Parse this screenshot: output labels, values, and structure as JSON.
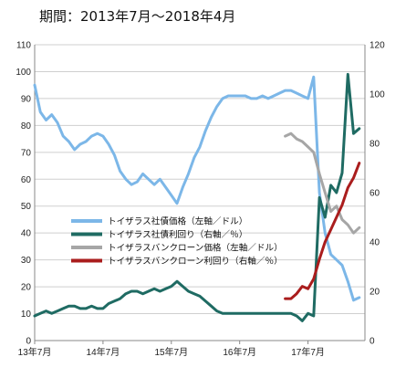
{
  "chart_data": {
    "type": "line",
    "title": "期間：2013年7月～2018年4月",
    "grid": true,
    "legend_position": "center-left",
    "x_range": [
      "2013-07",
      "2018-05"
    ],
    "x_ticks": [
      "13年7月",
      "14年7月",
      "15年7月",
      "16年7月",
      "17年7月"
    ],
    "y_left": {
      "min": 0,
      "max": 110,
      "step": 10,
      "ticks": [
        "0",
        "10",
        "20",
        "30",
        "40",
        "50",
        "60",
        "70",
        "80",
        "90",
        "100",
        "110"
      ]
    },
    "y_right": {
      "min": 0,
      "max": 120,
      "step": 20,
      "ticks": [
        "0",
        "20",
        "40",
        "60",
        "80",
        "100",
        "120"
      ]
    },
    "series": [
      {
        "name": "トイザラス社債価格（左軸／ドル）",
        "axis": "left",
        "color": "#7cb7e8",
        "points": [
          [
            "2013-07",
            95
          ],
          [
            "2013-08",
            85
          ],
          [
            "2013-09",
            82
          ],
          [
            "2013-10",
            84
          ],
          [
            "2013-11",
            81
          ],
          [
            "2013-12",
            76
          ],
          [
            "2014-01",
            74
          ],
          [
            "2014-02",
            71
          ],
          [
            "2014-03",
            73
          ],
          [
            "2014-04",
            74
          ],
          [
            "2014-05",
            76
          ],
          [
            "2014-06",
            77
          ],
          [
            "2014-07",
            76
          ],
          [
            "2014-08",
            73
          ],
          [
            "2014-09",
            69
          ],
          [
            "2014-10",
            63
          ],
          [
            "2014-11",
            60
          ],
          [
            "2014-12",
            58
          ],
          [
            "2015-01",
            59
          ],
          [
            "2015-02",
            62
          ],
          [
            "2015-03",
            60
          ],
          [
            "2015-04",
            58
          ],
          [
            "2015-05",
            60
          ],
          [
            "2015-06",
            57
          ],
          [
            "2015-07",
            54
          ],
          [
            "2015-08",
            51
          ],
          [
            "2015-09",
            57
          ],
          [
            "2015-10",
            62
          ],
          [
            "2015-11",
            68
          ],
          [
            "2015-12",
            72
          ],
          [
            "2016-01",
            78
          ],
          [
            "2016-02",
            83
          ],
          [
            "2016-03",
            87
          ],
          [
            "2016-04",
            90
          ],
          [
            "2016-05",
            91
          ],
          [
            "2016-06",
            91
          ],
          [
            "2016-07",
            91
          ],
          [
            "2016-08",
            91
          ],
          [
            "2016-09",
            90
          ],
          [
            "2016-10",
            90
          ],
          [
            "2016-11",
            91
          ],
          [
            "2016-12",
            90
          ],
          [
            "2017-01",
            91
          ],
          [
            "2017-02",
            92
          ],
          [
            "2017-03",
            93
          ],
          [
            "2017-04",
            93
          ],
          [
            "2017-05",
            92
          ],
          [
            "2017-06",
            91
          ],
          [
            "2017-07",
            90
          ],
          [
            "2017-08",
            98
          ],
          [
            "2017-09",
            55
          ],
          [
            "2017-10",
            40
          ],
          [
            "2017-11",
            32
          ],
          [
            "2017-12",
            30
          ],
          [
            "2018-01",
            28
          ],
          [
            "2018-02",
            22
          ],
          [
            "2018-03",
            15
          ],
          [
            "2018-04",
            16
          ]
        ]
      },
      {
        "name": "トイザラス社債利回り（右軸／％）",
        "axis": "right",
        "color": "#1f6b63",
        "points": [
          [
            "2013-07",
            10
          ],
          [
            "2013-08",
            11
          ],
          [
            "2013-09",
            12
          ],
          [
            "2013-10",
            11
          ],
          [
            "2013-11",
            12
          ],
          [
            "2013-12",
            13
          ],
          [
            "2014-01",
            14
          ],
          [
            "2014-02",
            14
          ],
          [
            "2014-03",
            13
          ],
          [
            "2014-04",
            13
          ],
          [
            "2014-05",
            14
          ],
          [
            "2014-06",
            13
          ],
          [
            "2014-07",
            13
          ],
          [
            "2014-08",
            15
          ],
          [
            "2014-09",
            16
          ],
          [
            "2014-10",
            17
          ],
          [
            "2014-11",
            19
          ],
          [
            "2014-12",
            20
          ],
          [
            "2015-01",
            20
          ],
          [
            "2015-02",
            19
          ],
          [
            "2015-03",
            20
          ],
          [
            "2015-04",
            21
          ],
          [
            "2015-05",
            20
          ],
          [
            "2015-06",
            21
          ],
          [
            "2015-07",
            22
          ],
          [
            "2015-08",
            24
          ],
          [
            "2015-09",
            22
          ],
          [
            "2015-10",
            20
          ],
          [
            "2015-11",
            19
          ],
          [
            "2015-12",
            18
          ],
          [
            "2016-01",
            16
          ],
          [
            "2016-02",
            14
          ],
          [
            "2016-03",
            12
          ],
          [
            "2016-04",
            11
          ],
          [
            "2016-05",
            11
          ],
          [
            "2016-06",
            11
          ],
          [
            "2016-07",
            11
          ],
          [
            "2016-08",
            11
          ],
          [
            "2016-09",
            11
          ],
          [
            "2016-10",
            11
          ],
          [
            "2016-11",
            11
          ],
          [
            "2016-12",
            11
          ],
          [
            "2017-01",
            11
          ],
          [
            "2017-02",
            11
          ],
          [
            "2017-03",
            11
          ],
          [
            "2017-04",
            11
          ],
          [
            "2017-05",
            10
          ],
          [
            "2017-06",
            8
          ],
          [
            "2017-07",
            11
          ],
          [
            "2017-08",
            10
          ],
          [
            "2017-09",
            58
          ],
          [
            "2017-10",
            50
          ],
          [
            "2017-11",
            63
          ],
          [
            "2017-12",
            60
          ],
          [
            "2018-01",
            68
          ],
          [
            "2018-02",
            108
          ],
          [
            "2018-03",
            84
          ],
          [
            "2018-04",
            86
          ]
        ]
      },
      {
        "name": "トイザラスバンクローン価格（左軸／ドル）",
        "axis": "left",
        "color": "#a6a6a6",
        "points": [
          [
            "2017-03",
            76
          ],
          [
            "2017-04",
            77
          ],
          [
            "2017-05",
            75
          ],
          [
            "2017-06",
            74
          ],
          [
            "2017-07",
            72
          ],
          [
            "2017-08",
            70
          ],
          [
            "2017-09",
            62
          ],
          [
            "2017-10",
            55
          ],
          [
            "2017-11",
            48
          ],
          [
            "2017-12",
            50
          ],
          [
            "2018-01",
            45
          ],
          [
            "2018-02",
            43
          ],
          [
            "2018-03",
            40
          ],
          [
            "2018-04",
            42
          ]
        ]
      },
      {
        "name": "トイザラスバンクローン利回り（右軸／％）",
        "axis": "right",
        "color": "#aa1d1d",
        "points": [
          [
            "2017-03",
            17
          ],
          [
            "2017-04",
            17
          ],
          [
            "2017-05",
            19
          ],
          [
            "2017-06",
            22
          ],
          [
            "2017-07",
            21
          ],
          [
            "2017-08",
            25
          ],
          [
            "2017-09",
            33
          ],
          [
            "2017-10",
            40
          ],
          [
            "2017-11",
            45
          ],
          [
            "2017-12",
            50
          ],
          [
            "2018-01",
            55
          ],
          [
            "2018-02",
            62
          ],
          [
            "2018-03",
            66
          ],
          [
            "2018-04",
            72
          ]
        ]
      }
    ]
  }
}
